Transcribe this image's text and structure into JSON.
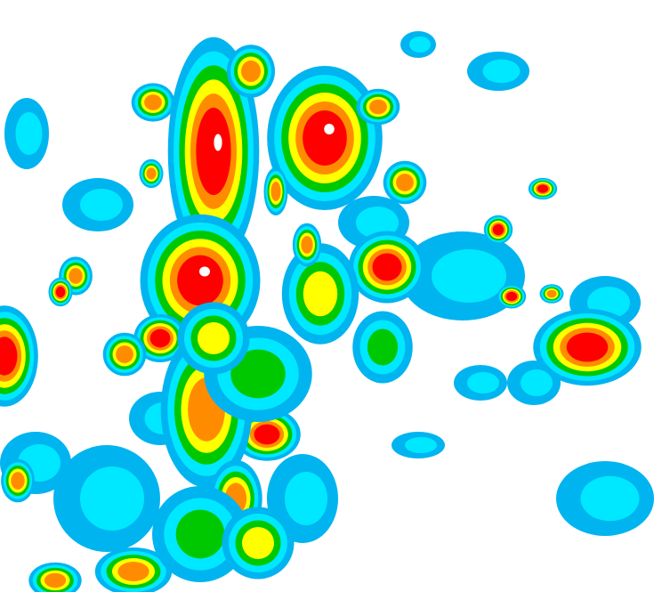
{
  "map": {
    "type": "precipitation-intensity",
    "background": "#ffffff",
    "intensity_palette": [
      {
        "level": "very-light",
        "color": "#00b4f0"
      },
      {
        "level": "light",
        "color": "#00e8ff"
      },
      {
        "level": "moderate-low",
        "color": "#00c800"
      },
      {
        "level": "moderate-dark",
        "color": "#005a00"
      },
      {
        "level": "moderate",
        "color": "#ffff00"
      },
      {
        "level": "heavy",
        "color": "#ff8c00"
      },
      {
        "level": "very-heavy",
        "color": "#ff0000"
      },
      {
        "level": "extreme",
        "color": "#ffffff"
      }
    ]
  }
}
